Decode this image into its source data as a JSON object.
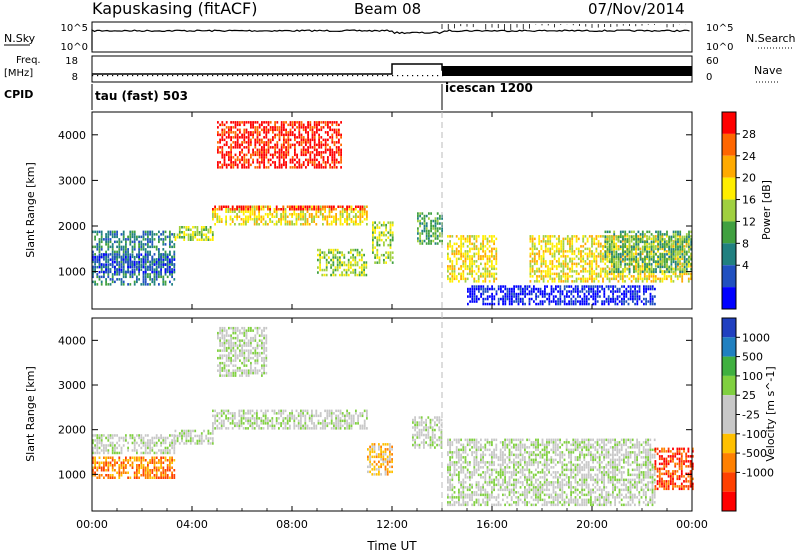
{
  "header": {
    "station": "Kapuskasing (fitACF)",
    "beam": "Beam 08",
    "date": "07/Nov/2014"
  },
  "status_panels": {
    "nsky_label": "N.Sky",
    "nsky_ticks": [
      "10^5",
      "10^0"
    ],
    "nsearch_label": "N.Search",
    "nsearch_ticks": [
      "10^5",
      "10^0"
    ],
    "freq_label": "Freq.",
    "freq_unit": "[MHz]",
    "freq_ticks": [
      "18",
      "8"
    ],
    "nave_label": "Nave",
    "nave_ticks": [
      "60",
      "0"
    ],
    "cpid_label": "CPID",
    "cpid_segments": [
      {
        "label": "tau (fast) 503",
        "start_hour": 0,
        "end_hour": 14
      },
      {
        "label": "icescan 1200",
        "start_hour": 14,
        "end_hour": 24
      }
    ]
  },
  "chart_data": [
    {
      "type": "heatmap",
      "name": "power",
      "ylabel": "Slant Range [km]",
      "y_ticks": [
        "4000",
        "3000",
        "2000",
        "1000"
      ],
      "y_tick_values": [
        4000,
        3000,
        2000,
        1000
      ],
      "ylim": [
        180,
        4500
      ],
      "colorbar_label": "Power [dB]",
      "colorbar_ticks": [
        "28",
        "24",
        "20",
        "16",
        "12",
        "8",
        "4"
      ],
      "colorbar_colors": [
        "#ff0000",
        "#ff6600",
        "#ffaa00",
        "#ffee00",
        "#a0d040",
        "#40a040",
        "#208080",
        "#2050c0",
        "#0000ff"
      ],
      "regions": [
        {
          "x": [
            0.0,
            3.3
          ],
          "y": [
            700,
            1900
          ],
          "level": 7
        },
        {
          "x": [
            0.0,
            3.3
          ],
          "y": [
            1000,
            1400
          ],
          "level": 8
        },
        {
          "x": [
            3.3,
            4.8
          ],
          "y": [
            1700,
            2000
          ],
          "level": 5
        },
        {
          "x": [
            4.8,
            11.0
          ],
          "y": [
            2050,
            2450
          ],
          "level": 4
        },
        {
          "x": [
            4.8,
            11.0
          ],
          "y": [
            2350,
            2450
          ],
          "level": 1
        },
        {
          "x": [
            5.0,
            10.0
          ],
          "y": [
            3300,
            4300
          ],
          "level": 1
        },
        {
          "x": [
            9.0,
            11.0
          ],
          "y": [
            900,
            1500
          ],
          "level": 5
        },
        {
          "x": [
            11.2,
            12.0
          ],
          "y": [
            1200,
            2100
          ],
          "level": 5
        },
        {
          "x": [
            13.0,
            14.0
          ],
          "y": [
            1600,
            2300
          ],
          "level": 6
        },
        {
          "x": [
            14.2,
            16.2
          ],
          "y": [
            800,
            1800
          ],
          "level": 4
        },
        {
          "x": [
            17.5,
            24.0
          ],
          "y": [
            800,
            1800
          ],
          "level": 4
        },
        {
          "x": [
            20.5,
            24.0
          ],
          "y": [
            1000,
            1900
          ],
          "level": 6
        },
        {
          "x": [
            15.0,
            22.5
          ],
          "y": [
            280,
            700
          ],
          "level": 9
        }
      ]
    },
    {
      "type": "heatmap",
      "name": "velocity",
      "ylabel": "Slant Range [km]",
      "y_ticks": [
        "4000",
        "3000",
        "2000",
        "1000"
      ],
      "y_tick_values": [
        4000,
        3000,
        2000,
        1000
      ],
      "ylim": [
        180,
        4500
      ],
      "colorbar_label": "Velocity [m s^-1]",
      "colorbar_ticks": [
        "1000",
        "500",
        "100",
        "25",
        "-25",
        "-100",
        "-500",
        "-1000"
      ],
      "colorbar_colors": [
        "#2040c0",
        "#2080c0",
        "#40b040",
        "#80d040",
        "#c8c8c8",
        "#c8c8c8",
        "#ffc000",
        "#ff8000",
        "#ff4000",
        "#ff0000"
      ],
      "regions": [
        {
          "x": [
            0.0,
            3.3
          ],
          "y": [
            1500,
            1900
          ],
          "level": 5
        },
        {
          "x": [
            0.0,
            3.3
          ],
          "y": [
            900,
            1400
          ],
          "level": 8
        },
        {
          "x": [
            3.3,
            4.8
          ],
          "y": [
            1700,
            2000
          ],
          "level": 5
        },
        {
          "x": [
            4.8,
            11.0
          ],
          "y": [
            2050,
            2450
          ],
          "level": 5
        },
        {
          "x": [
            5.0,
            7.0
          ],
          "y": [
            3200,
            4300
          ],
          "level": 5
        },
        {
          "x": [
            11.0,
            12.0
          ],
          "y": [
            1000,
            1700
          ],
          "level": 7
        },
        {
          "x": [
            12.8,
            14.0
          ],
          "y": [
            1600,
            2300
          ],
          "level": 5
        },
        {
          "x": [
            14.2,
            22.5
          ],
          "y": [
            300,
            1800
          ],
          "level": 5
        },
        {
          "x": [
            22.5,
            24.0
          ],
          "y": [
            700,
            1600
          ],
          "level": 9
        }
      ]
    }
  ],
  "x_axis": {
    "label": "Time UT",
    "ticks": [
      "00:00",
      "04:00",
      "08:00",
      "12:00",
      "16:00",
      "20:00",
      "00:00"
    ],
    "tick_hours": [
      0,
      4,
      8,
      12,
      16,
      20,
      24
    ]
  }
}
